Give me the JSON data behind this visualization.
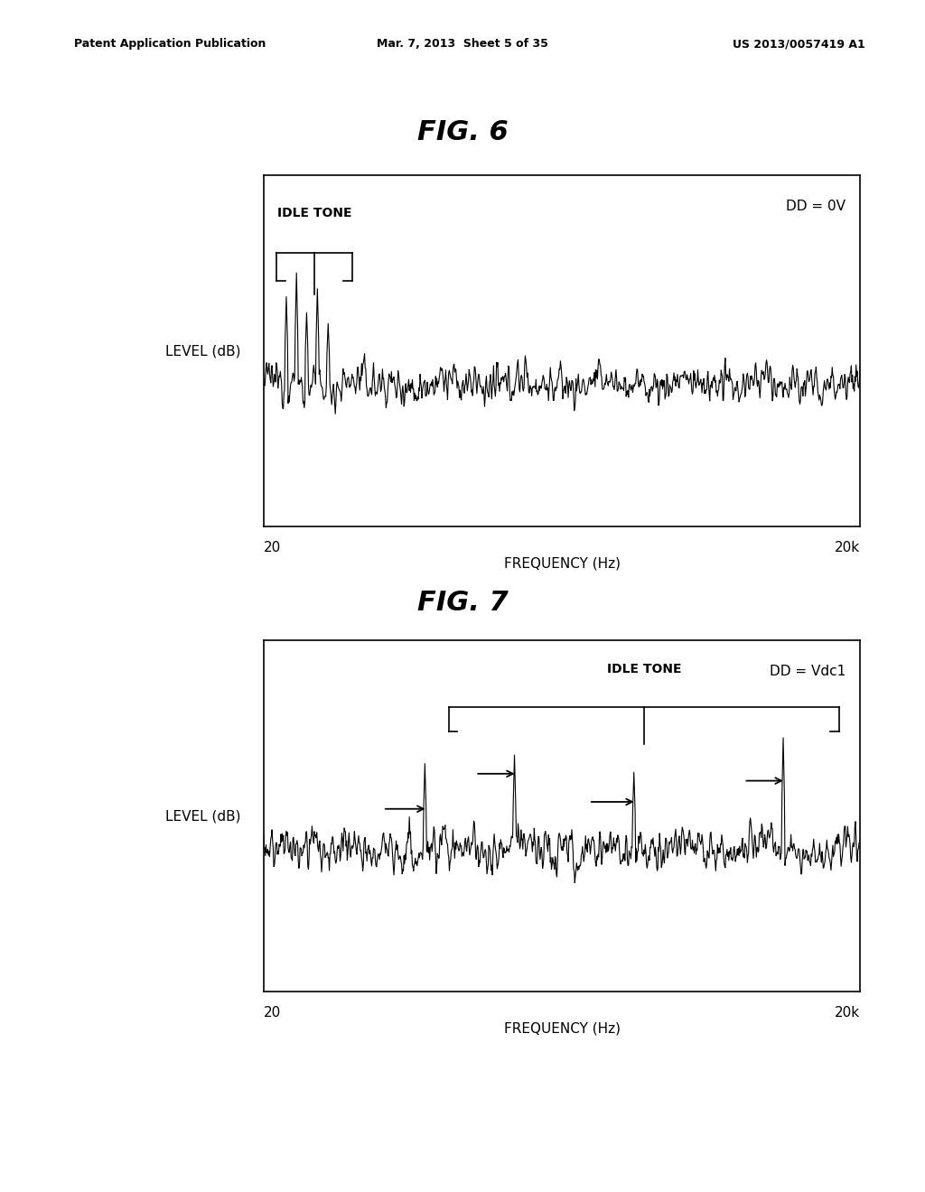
{
  "bg_color": "#ffffff",
  "header_left": "Patent Application Publication",
  "header_mid": "Mar. 7, 2013  Sheet 5 of 35",
  "header_right": "US 2013/0057419 A1",
  "fig6_title": "FIG. 6",
  "fig7_title": "FIG. 7",
  "xlabel": "FREQUENCY (Hz)",
  "ylabel": "LEVEL (dB)",
  "x_left_label": "20",
  "x_right_label": "20k",
  "fig6_annotation": "DD = 0V",
  "fig7_annotation": "DD = Vdc1",
  "idle_tone_label": "IDLE TONE",
  "line_color": "#000000",
  "axis_color": "#000000",
  "header_fontsize": 9,
  "fig_title_fontsize": 22,
  "label_fontsize": 11,
  "annotation_fontsize": 11
}
